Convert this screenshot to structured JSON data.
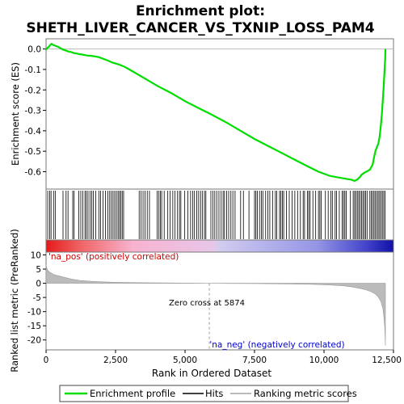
{
  "chart_data": {
    "type": "line",
    "title": "Enrichment plot:",
    "subtitle": "SHETH_LIVER_CANCER_VS_TXNIP_LOSS_PAM4",
    "top_panel": {
      "ylabel": "Enrichment score (ES)",
      "ylim": [
        -0.685,
        0.05
      ],
      "yticks": [
        0.0,
        -0.1,
        -0.2,
        -0.3,
        -0.4,
        -0.5,
        -0.6
      ],
      "ytick_labels": [
        "0.0",
        "-0.1",
        "-0.2",
        "-0.3",
        "-0.4",
        "-0.5",
        "-0.6"
      ],
      "series": [
        {
          "name": "Enrichment profile",
          "color": "#00dd00",
          "x": [
            0,
            40,
            100,
            150,
            200,
            250,
            300,
            350,
            400,
            450,
            500,
            600,
            700,
            800,
            900,
            1000,
            1100,
            1200,
            1300,
            1400,
            1500,
            1600,
            1700,
            1800,
            1900,
            2000,
            2200,
            2400,
            2600,
            2800,
            3000,
            3500,
            4000,
            4500,
            5000,
            5500,
            5874,
            6500,
            7000,
            7500,
            8000,
            8500,
            9000,
            9500,
            9800,
            10000,
            10200,
            10500,
            10800,
            11000,
            11100,
            11200,
            11300,
            11350,
            11450,
            11550,
            11650,
            11750,
            11800,
            11850,
            11900,
            11950,
            12000,
            12040,
            12080,
            12110,
            12140,
            12160,
            12180,
            12200,
            12210
          ],
          "values": [
            -0.005,
            0.005,
            0.01,
            0.02,
            0.025,
            0.02,
            0.018,
            0.015,
            0.012,
            0.01,
            0.005,
            -0.002,
            -0.007,
            -0.012,
            -0.015,
            -0.02,
            -0.022,
            -0.025,
            -0.027,
            -0.03,
            -0.032,
            -0.033,
            -0.035,
            -0.037,
            -0.04,
            -0.045,
            -0.055,
            -0.067,
            -0.075,
            -0.085,
            -0.1,
            -0.14,
            -0.18,
            -0.215,
            -0.255,
            -0.29,
            -0.315,
            -0.36,
            -0.4,
            -0.44,
            -0.475,
            -0.51,
            -0.545,
            -0.58,
            -0.6,
            -0.61,
            -0.62,
            -0.628,
            -0.635,
            -0.64,
            -0.645,
            -0.638,
            -0.625,
            -0.615,
            -0.605,
            -0.598,
            -0.59,
            -0.565,
            -0.53,
            -0.5,
            -0.48,
            -0.465,
            -0.43,
            -0.38,
            -0.32,
            -0.26,
            -0.2,
            -0.15,
            -0.1,
            -0.05,
            0.0
          ]
        }
      ]
    },
    "hits": [
      60,
      130,
      180,
      270,
      330,
      610,
      720,
      790,
      960,
      1010,
      1180,
      1250,
      1320,
      1400,
      1450,
      1510,
      1580,
      1640,
      1700,
      1790,
      1900,
      1960,
      2050,
      2140,
      2220,
      2290,
      2350,
      2410,
      2470,
      2530,
      2590,
      2640,
      2690,
      2740,
      2790,
      3350,
      3420,
      3490,
      3560,
      3640,
      3720,
      4000,
      4060,
      4110,
      4160,
      4250,
      4380,
      4460,
      4560,
      4640,
      4730,
      4800,
      4850,
      4990,
      5100,
      5200,
      5280,
      5340,
      5420,
      5490,
      5560,
      5630,
      5700,
      5750,
      5930,
      6000,
      6070,
      6140,
      6220,
      6300,
      6370,
      6420,
      6500,
      6570,
      6650,
      6720,
      6800,
      7000,
      7100,
      7300,
      7500,
      7550,
      7600,
      7680,
      7750,
      7800,
      7900,
      7980,
      8050,
      8150,
      8250,
      8300,
      8400,
      8450,
      8500,
      8550,
      8650,
      8750,
      8850,
      8950,
      9050,
      9150,
      9250,
      9300,
      9400,
      9450,
      9500,
      9600,
      9700,
      9800,
      9850,
      9900,
      10050,
      10150,
      10250,
      10300,
      10400,
      10450,
      10550,
      10650,
      10700,
      10750,
      10800,
      10950,
      11050,
      11100,
      11150,
      11200,
      11250,
      11300,
      11350,
      11400,
      11450,
      11500,
      11550,
      11650,
      11700,
      11750,
      11800,
      11850,
      11900,
      11950,
      12000,
      12050,
      12100,
      12150,
      12200
    ],
    "bar": {
      "gradient": [
        {
          "offset": 0.0,
          "color": "#e41a1a"
        },
        {
          "offset": 0.1,
          "color": "#f06565"
        },
        {
          "offset": 0.25,
          "color": "#f7b3d0"
        },
        {
          "offset": 0.48,
          "color": "#e8c6e8"
        },
        {
          "offset": 0.5,
          "color": "#d0ccf0"
        },
        {
          "offset": 0.78,
          "color": "#9595e6"
        },
        {
          "offset": 0.92,
          "color": "#4444cc"
        },
        {
          "offset": 1.0,
          "color": "#1010a8"
        }
      ]
    },
    "bottom_panel": {
      "ylabel": "Ranked list metric (PreRanked)",
      "xlabel": "Rank in Ordered Dataset",
      "ylim": [
        -23.5,
        11.0
      ],
      "yticks": [
        10,
        5,
        0,
        -5,
        -10,
        -15,
        -20
      ],
      "ytick_labels": [
        "10",
        "5",
        "0",
        "-5",
        "-10",
        "-15",
        "-20"
      ],
      "xlim": [
        0,
        12500
      ],
      "xticks": [
        0,
        2500,
        5000,
        7500,
        10000,
        12500
      ],
      "xtick_labels": [
        "0",
        "2,500",
        "5,000",
        "7,500",
        "10,000",
        "12,500"
      ],
      "metric": {
        "x": [
          0,
          20,
          60,
          120,
          200,
          300,
          500,
          700,
          900,
          1200,
          1600,
          2000,
          2500,
          3000,
          3500,
          4000,
          5000,
          5874,
          6500,
          7500,
          8500,
          9500,
          10200,
          10700,
          11000,
          11300,
          11500,
          11700,
          11850,
          11950,
          12050,
          12120,
          12160,
          12190,
          12210
        ],
        "values": [
          6.5,
          5.5,
          4.6,
          4.0,
          3.5,
          3.0,
          2.5,
          2.0,
          1.5,
          1.0,
          0.7,
          0.5,
          0.35,
          0.25,
          0.2,
          0.15,
          0.08,
          0.0,
          -0.05,
          -0.1,
          -0.2,
          -0.35,
          -0.6,
          -0.9,
          -1.3,
          -1.8,
          -2.3,
          -3.0,
          -3.8,
          -4.8,
          -6.5,
          -9.0,
          -12.5,
          -16.0,
          -22.0
        ]
      },
      "zero_cross": 5874,
      "zero_cross_label": "Zero cross at 5874",
      "pos_label": "'na_pos' (positively correlated)",
      "neg_label": "'na_neg' (negatively correlated)",
      "pos_color": "#cc0000",
      "neg_color": "#0000cc"
    },
    "legend": {
      "items": [
        {
          "label": "Enrichment profile",
          "color": "#00dd00"
        },
        {
          "label": "Hits",
          "color": "#000000"
        },
        {
          "label": "Ranking metric scores",
          "color": "#bbbbbb"
        }
      ]
    }
  }
}
